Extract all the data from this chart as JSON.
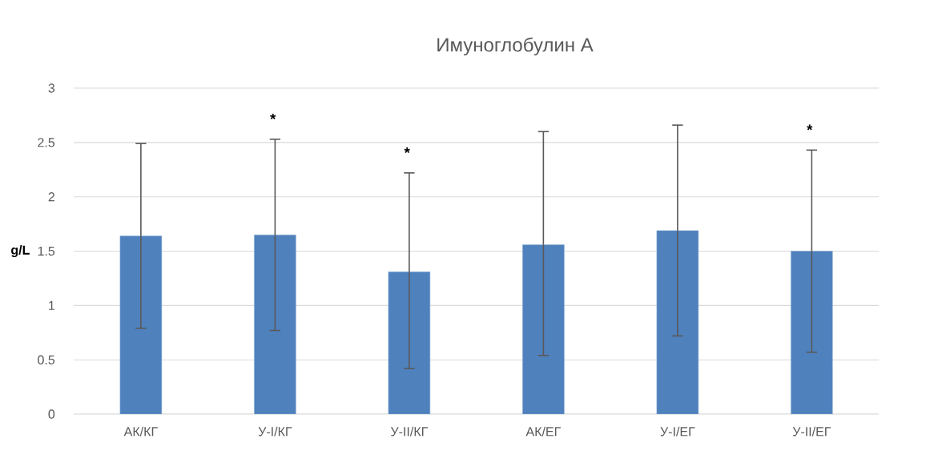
{
  "chart_data": {
    "type": "bar",
    "title": "Имуноглобулин А",
    "ylabel": "g/L",
    "categories": [
      "АК/КГ",
      "У-I/КГ",
      "У-II/КГ",
      "АК/ЕГ",
      "У-I/ЕГ",
      "У-II/ЕГ"
    ],
    "values": [
      1.64,
      1.65,
      1.31,
      1.56,
      1.69,
      1.5
    ],
    "errors": [
      [
        0.79,
        2.49
      ],
      [
        0.77,
        2.53
      ],
      [
        0.42,
        2.22
      ],
      [
        0.54,
        2.6
      ],
      [
        0.72,
        2.66
      ],
      [
        0.57,
        2.43
      ]
    ],
    "color": "#4f81bd",
    "ylim": [
      0,
      3
    ],
    "yticks": [
      0,
      0.5,
      1,
      1.5,
      2,
      2.5,
      3
    ],
    "grid": "y",
    "annotations": [
      {
        "text": "*",
        "x": "У-I/КГ",
        "y": 2.53
      },
      {
        "text": "*",
        "x": "У-II/КГ",
        "y": 2.22
      },
      {
        "text": "*",
        "x": "У-II/ЕГ",
        "y": 2.43
      }
    ]
  }
}
